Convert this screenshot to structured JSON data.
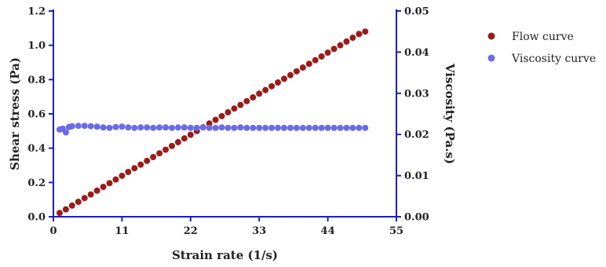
{
  "chart_data": {
    "type": "scatter",
    "title": "",
    "xlabel": "Strain rate (1/s)",
    "ylabel": "Shear stress (Pa)",
    "y2label": "Viscosity (Pa.s)",
    "xlim": [
      0,
      55
    ],
    "ylim": [
      0,
      1.2
    ],
    "y2lim": [
      0,
      0.05
    ],
    "xticks": [
      "0",
      "11",
      "22",
      "33",
      "44",
      "55"
    ],
    "yticks": [
      "0.0",
      "0.2",
      "0.4",
      "0.6",
      "0.8",
      "1.0",
      "1.2"
    ],
    "y2ticks": [
      "0.00",
      "0.01",
      "0.02",
      "0.03",
      "0.04",
      "0.05"
    ],
    "grid": false,
    "legend": "right",
    "series": [
      {
        "name": "Flow curve",
        "axis": "left",
        "color": "#9b1b1b",
        "x": [
          1,
          2,
          3,
          4,
          5,
          6,
          7,
          8,
          9,
          10,
          11,
          12,
          13,
          14,
          15,
          16,
          17,
          18,
          19,
          20,
          21,
          22,
          23,
          24,
          25,
          26,
          27,
          28,
          29,
          30,
          31,
          32,
          33,
          34,
          35,
          36,
          37,
          38,
          39,
          40,
          41,
          42,
          43,
          44,
          45,
          46,
          47,
          48,
          49,
          50
        ],
        "y": [
          0.022,
          0.043,
          0.065,
          0.087,
          0.109,
          0.13,
          0.152,
          0.174,
          0.196,
          0.217,
          0.239,
          0.261,
          0.283,
          0.304,
          0.326,
          0.348,
          0.37,
          0.391,
          0.413,
          0.435,
          0.457,
          0.478,
          0.5,
          0.522,
          0.544,
          0.565,
          0.587,
          0.609,
          0.631,
          0.652,
          0.674,
          0.696,
          0.718,
          0.739,
          0.761,
          0.783,
          0.805,
          0.826,
          0.848,
          0.87,
          0.892,
          0.913,
          0.935,
          0.957,
          0.979,
          1.0,
          1.022,
          1.044,
          1.066,
          1.08
        ]
      },
      {
        "name": "Viscosity curve",
        "axis": "right",
        "color": "#6b6be8",
        "x": [
          1,
          1.5,
          2,
          2.5,
          3,
          4,
          5,
          6,
          7,
          8,
          9,
          10,
          11,
          12,
          13,
          14,
          15,
          16,
          17,
          18,
          19,
          20,
          21,
          22,
          23,
          24,
          25,
          26,
          27,
          28,
          29,
          30,
          31,
          32,
          33,
          34,
          35,
          36,
          37,
          38,
          39,
          40,
          41,
          42,
          43,
          44,
          45,
          46,
          47,
          48,
          49,
          50
        ],
        "y": [
          0.0212,
          0.0214,
          0.0205,
          0.0218,
          0.022,
          0.0221,
          0.0221,
          0.022,
          0.0219,
          0.0217,
          0.0216,
          0.0218,
          0.0219,
          0.0217,
          0.0216,
          0.0217,
          0.0217,
          0.0216,
          0.0217,
          0.0217,
          0.0216,
          0.0217,
          0.0217,
          0.0216,
          0.0216,
          0.0217,
          0.0216,
          0.0216,
          0.0217,
          0.0216,
          0.0216,
          0.0217,
          0.0216,
          0.0216,
          0.0216,
          0.0216,
          0.0216,
          0.0216,
          0.0216,
          0.0216,
          0.0216,
          0.0216,
          0.0216,
          0.0216,
          0.0216,
          0.0216,
          0.0216,
          0.0216,
          0.0216,
          0.0216,
          0.0216,
          0.0216
        ]
      }
    ]
  }
}
